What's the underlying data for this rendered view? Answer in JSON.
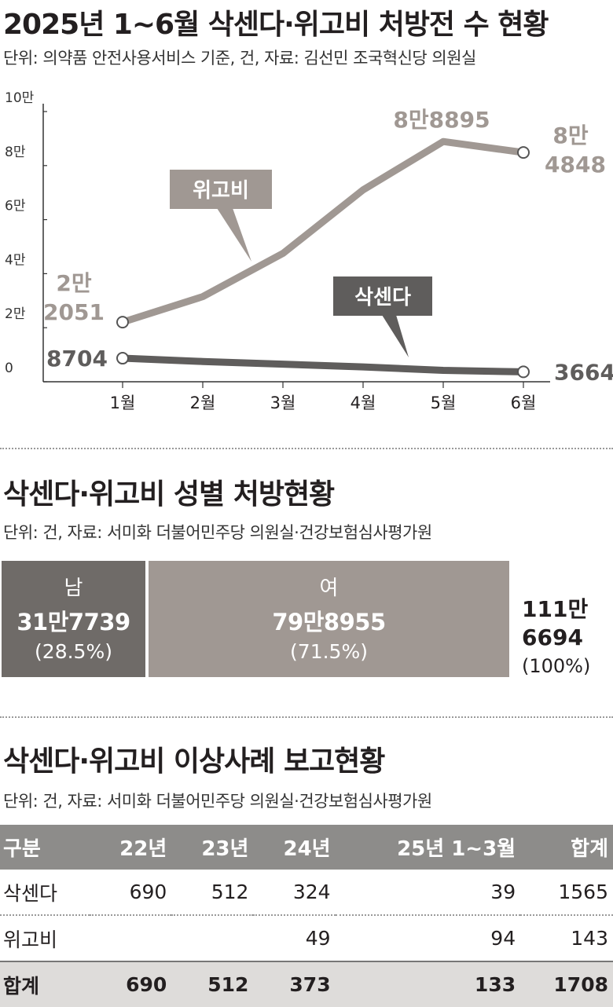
{
  "section1": {
    "title": "2025년 1~6월 삭센다·위고비 처방전 수 현황",
    "subtitle": "단위: 의약품 안전사용서비스 기준, 건, 자료: 김선민 조국혁신당 의원실"
  },
  "chart_data": {
    "type": "line",
    "categories": [
      "1월",
      "2월",
      "3월",
      "4월",
      "5월",
      "6월"
    ],
    "ylim": [
      0,
      100000
    ],
    "yticks": [
      0,
      20000,
      40000,
      60000,
      80000,
      100000
    ],
    "ytick_labels": [
      "0",
      "2만",
      "4만",
      "6만",
      "8만",
      "10만"
    ],
    "grid": false,
    "series": [
      {
        "name": "위고비",
        "color": "#a09893",
        "values": [
          22051,
          31500,
          47500,
          71000,
          88895,
          84848
        ],
        "labels": {
          "first": [
            "2만",
            "2051"
          ],
          "last": [
            "8만",
            "4848"
          ],
          "peak": "8만8895"
        }
      },
      {
        "name": "삭센다",
        "color": "#5f5d5c",
        "values": [
          8704,
          7500,
          6500,
          5500,
          4200,
          3664
        ],
        "labels": {
          "first": [
            "8704"
          ],
          "last": [
            "3664"
          ]
        }
      }
    ]
  },
  "section2": {
    "title": "삭센다·위고비 성별 처방현황",
    "subtitle": "단위: 건, 자료: 서미화 더불어민주당 의원실·건강보험심사평가원",
    "male": {
      "label": "남",
      "value": "31만7739",
      "pct": "(28.5%)",
      "share": 28.5,
      "color": "#6f6b68"
    },
    "female": {
      "label": "여",
      "value": "79만8955",
      "pct": "(71.5%)",
      "share": 71.5,
      "color": "#a09893"
    },
    "total": {
      "line1": "111만",
      "line2": "6694",
      "pct": "(100%)"
    }
  },
  "section3": {
    "title": "삭센다·위고비 이상사례 보고현황",
    "subtitle": "단위: 건, 자료: 서미화 더불어민주당 의원실·건강보험심사평가원",
    "headers": [
      "구분",
      "22년",
      "23년",
      "24년",
      "25년 1~3월",
      "합계"
    ],
    "rows": [
      [
        "삭센다",
        "690",
        "512",
        "324",
        "39",
        "1565"
      ],
      [
        "위고비",
        "",
        "",
        "49",
        "94",
        "143"
      ]
    ],
    "total_row": [
      "합계",
      "690",
      "512",
      "373",
      "133",
      "1708"
    ]
  }
}
